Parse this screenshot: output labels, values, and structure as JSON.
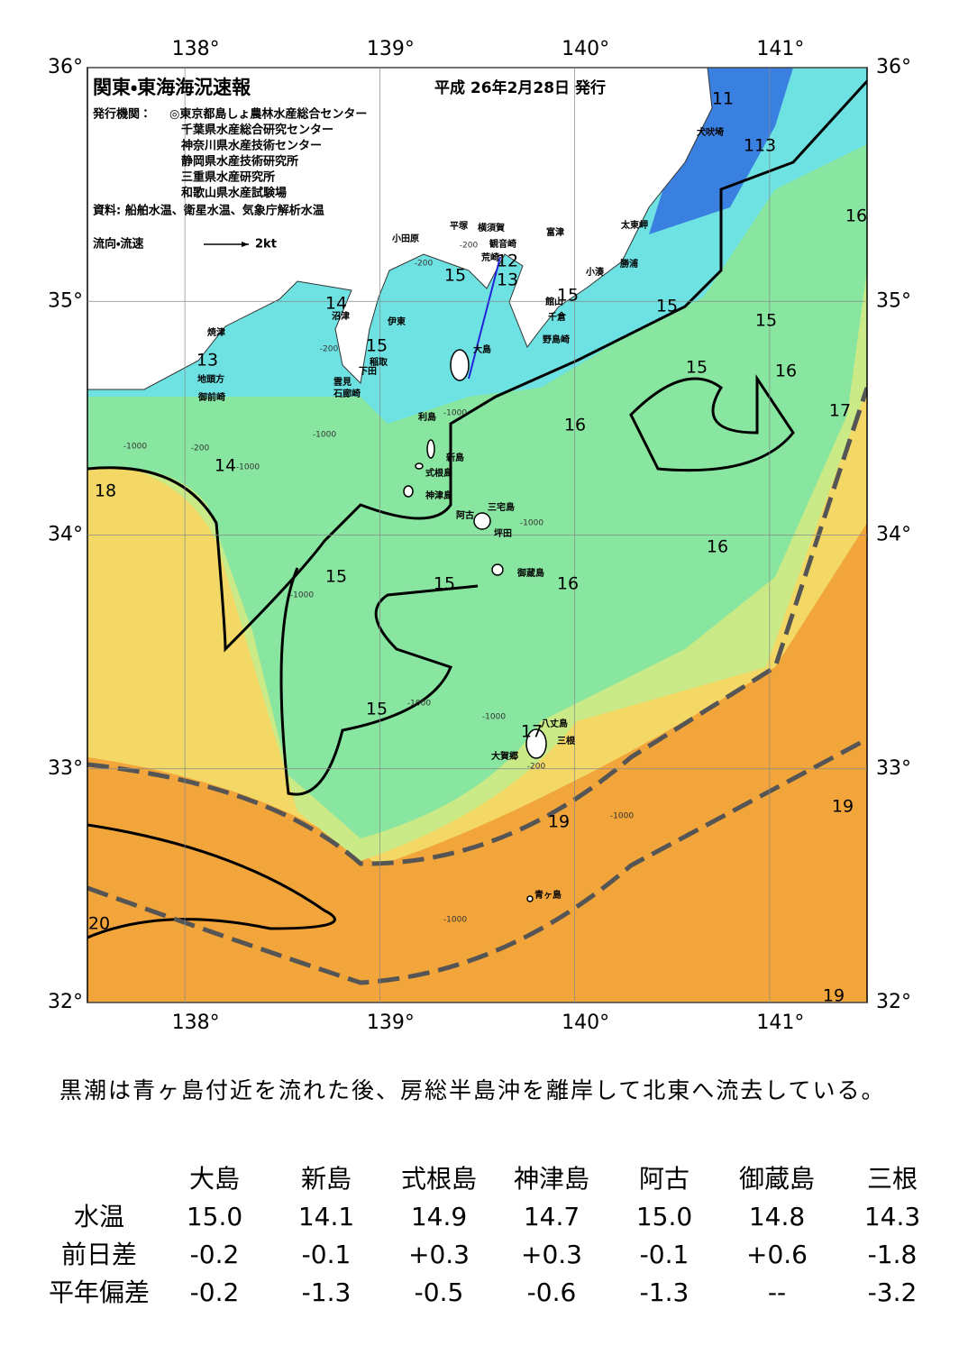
{
  "header": {
    "title": "関東・東海海況速報",
    "date": "平成 26年2月28日 発行",
    "issuer_label": "発行機関：",
    "issuers": [
      "◎東京都島しょ農林水産総合センター",
      "千葉県水産総合研究センター",
      "神奈川県水産技術センター",
      "静岡県水産技術研究所",
      "三重県水産研究所",
      "和歌山県水産試験場"
    ],
    "source": "資料: 船舶水温、衛星水温、気象庁解析水温",
    "legend_label": "流向・流速",
    "legend_speed": "2kt"
  },
  "map": {
    "xlim": [
      137.5,
      141.5
    ],
    "ylim": [
      32,
      36
    ],
    "lon_ticks": [
      {
        "value": 138,
        "label": "138°"
      },
      {
        "value": 139,
        "label": "139°"
      },
      {
        "value": 140,
        "label": "140°"
      },
      {
        "value": 141,
        "label": "141°"
      }
    ],
    "lat_ticks": [
      {
        "value": 32,
        "label": "32°"
      },
      {
        "value": 33,
        "label": "33°"
      },
      {
        "value": 34,
        "label": "34°"
      },
      {
        "value": 35,
        "label": "35°"
      },
      {
        "value": 36,
        "label": "36°"
      }
    ],
    "isotherm_labels": [
      11,
      113,
      16,
      12,
      15,
      13,
      15,
      15,
      15,
      14,
      15,
      13,
      15,
      16,
      17,
      16,
      14,
      18,
      16,
      15,
      15,
      16,
      15,
      17,
      19,
      19,
      20,
      19
    ],
    "depth_labels": [
      -200,
      -200,
      -1000,
      -200,
      -1000,
      -1000,
      -200,
      -1000,
      -1000,
      -1000,
      -1000,
      -1000,
      -200,
      -1000,
      -1000
    ],
    "places": [
      "犬吠埼",
      "太東岬",
      "富津",
      "横須賀",
      "平塚",
      "小田原",
      "観音崎",
      "荒崎",
      "勝浦",
      "小湊",
      "館山",
      "千倉",
      "野島崎",
      "沼津",
      "伊東",
      "焼津",
      "稲取",
      "下田",
      "雲見",
      "石廊崎",
      "地頭方",
      "御前崎",
      "大島",
      "利島",
      "新島",
      "式根島",
      "神津島",
      "阿古",
      "三宅島",
      "坪田",
      "御蔵島",
      "八丈島",
      "三根",
      "大賀郷",
      "青ヶ島"
    ]
  },
  "summary": "黒潮は青ヶ島付近を流れた後、房総半島沖を離岸して北東へ流去している。",
  "table": {
    "columns": [
      "大島",
      "新島",
      "式根島",
      "神津島",
      "阿古",
      "御蔵島",
      "三根"
    ],
    "rows": [
      {
        "label": "水温",
        "values": [
          "15.0",
          "14.1",
          "14.9",
          "14.7",
          "15.0",
          "14.8",
          "14.3"
        ]
      },
      {
        "label": "前日差",
        "values": [
          "-0.2",
          "-0.1",
          "+0.3",
          "+0.3",
          "-0.1",
          "+0.6",
          "-1.8"
        ]
      },
      {
        "label": "平年偏差",
        "values": [
          "-0.2",
          "-1.3",
          "-0.5",
          "-0.6",
          "-1.3",
          "--",
          "-3.2"
        ]
      }
    ]
  }
}
